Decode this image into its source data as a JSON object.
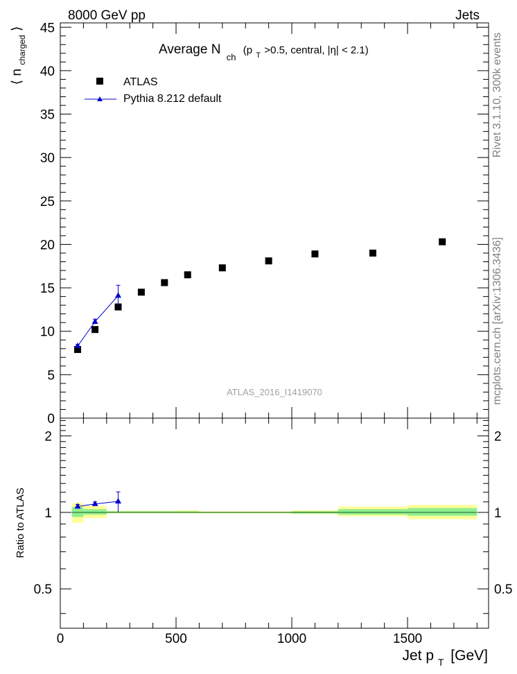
{
  "header": {
    "left": "8000 GeV pp",
    "right": "Jets"
  },
  "side_labels": {
    "rivet": "Rivet 3.1.10,  300k events",
    "mcplots": "mcplots.cern.ch [arXiv:1306.3436]"
  },
  "chart_data": [
    {
      "type": "scatter",
      "panel": "main",
      "title_main": "Average N",
      "title_sub": "ch",
      "title_cut": "(p",
      "title_cut_sub": "T",
      "title_rest": ">0.5, central, |η| < 2.1)",
      "ylabel": "⟨ n",
      "ylabel_sub": "charged",
      "ylabel_close": "⟩",
      "watermark": "ATLAS_2016_I1419070",
      "xlim": [
        0,
        1850
      ],
      "ylim": [
        0,
        45.5
      ],
      "yticks": [
        0,
        5,
        10,
        15,
        20,
        25,
        30,
        35,
        40,
        45
      ],
      "ytick_labels": [
        "0",
        "5",
        "10",
        "15",
        "20",
        "25",
        "30",
        "35",
        "40",
        "45"
      ],
      "legend_position": "top-left",
      "series": [
        {
          "name": "ATLAS",
          "marker": "square",
          "color": "#000000",
          "x": [
            75,
            150,
            250,
            350,
            450,
            550,
            700,
            900,
            1100,
            1350,
            1650
          ],
          "y": [
            7.9,
            10.2,
            12.8,
            14.5,
            15.6,
            16.5,
            17.3,
            18.1,
            18.9,
            19.0,
            20.3
          ]
        },
        {
          "name": "Pythia 8.212 default",
          "marker": "triangle",
          "color": "#0000cc",
          "x": [
            75,
            150,
            250
          ],
          "y": [
            8.3,
            11.1,
            14.1
          ],
          "yerr": [
            0.2,
            0.3,
            1.2
          ]
        }
      ]
    },
    {
      "type": "scatter",
      "panel": "ratio",
      "ylabel": "Ratio to ATLAS",
      "xlabel": "Jet p",
      "xlabel_sub": "T",
      "xlabel_unit": "[GeV]",
      "xlim": [
        0,
        1850
      ],
      "ylim": [
        0.35,
        2.35
      ],
      "yticks": [
        0.5,
        1,
        2
      ],
      "ytick_labels": [
        "0.5",
        "1",
        "2"
      ],
      "xticks": [
        0,
        500,
        1000,
        1500
      ],
      "xtick_labels": [
        "0",
        "500",
        "1000",
        "1500"
      ],
      "bands": [
        {
          "x0": 50,
          "x1": 100,
          "inner": [
            0.96,
            1.05
          ],
          "outer": [
            0.91,
            1.09
          ]
        },
        {
          "x0": 100,
          "x1": 200,
          "inner": [
            0.98,
            1.03
          ],
          "outer": [
            0.95,
            1.06
          ]
        },
        {
          "x0": 200,
          "x1": 300,
          "inner": [
            0.995,
            1.01
          ],
          "outer": [
            0.99,
            1.015
          ]
        },
        {
          "x0": 300,
          "x1": 400,
          "inner": [
            0.995,
            1.01
          ],
          "outer": [
            0.99,
            1.015
          ]
        },
        {
          "x0": 400,
          "x1": 500,
          "inner": [
            0.995,
            1.01
          ],
          "outer": [
            0.99,
            1.015
          ]
        },
        {
          "x0": 500,
          "x1": 600,
          "inner": [
            0.995,
            1.01
          ],
          "outer": [
            0.99,
            1.02
          ]
        },
        {
          "x0": 600,
          "x1": 800,
          "inner": [
            0.995,
            1.005
          ],
          "outer": [
            0.99,
            1.01
          ]
        },
        {
          "x0": 800,
          "x1": 1000,
          "inner": [
            0.995,
            1.005
          ],
          "outer": [
            0.99,
            1.01
          ]
        },
        {
          "x0": 1000,
          "x1": 1200,
          "inner": [
            0.99,
            1.01
          ],
          "outer": [
            0.985,
            1.02
          ]
        },
        {
          "x0": 1200,
          "x1": 1500,
          "inner": [
            0.98,
            1.03
          ],
          "outer": [
            0.965,
            1.055
          ]
        },
        {
          "x0": 1500,
          "x1": 1800,
          "inner": [
            0.97,
            1.04
          ],
          "outer": [
            0.94,
            1.07
          ]
        }
      ],
      "series": [
        {
          "name": "Pythia 8.212 default",
          "marker": "triangle",
          "color": "#0000cc",
          "x": [
            75,
            150,
            250
          ],
          "y": [
            1.055,
            1.08,
            1.105
          ],
          "yerr": [
            0.02,
            0.02,
            0.1
          ]
        }
      ]
    }
  ],
  "colors": {
    "band_inner": "#90ee90",
    "band_outer": "#ffff99",
    "text_gray": "#808080",
    "reference_line": "#2a6e2a"
  }
}
